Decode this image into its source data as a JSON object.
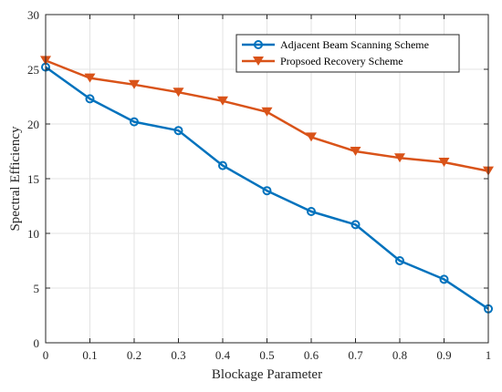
{
  "chart_data": {
    "type": "line",
    "xlabel": "Blockage Parameter",
    "ylabel": "Spectral Efficiency",
    "x": [
      0,
      0.1,
      0.2,
      0.3,
      0.4,
      0.5,
      0.6,
      0.7,
      0.8,
      0.9,
      1
    ],
    "xticks": [
      "0",
      "0.1",
      "0.2",
      "0.3",
      "0.4",
      "0.5",
      "0.6",
      "0.7",
      "0.8",
      "0.9",
      "1"
    ],
    "yticks": [
      "0",
      "5",
      "10",
      "15",
      "20",
      "25",
      "30"
    ],
    "xlim": [
      0,
      1
    ],
    "ylim": [
      0,
      30
    ],
    "grid": true,
    "legend_position": "top-right",
    "series": [
      {
        "name": "Adjacent Beam Scanning Scheme",
        "color": "#0072BD",
        "marker": "circle",
        "values": [
          25.2,
          22.3,
          20.2,
          19.4,
          16.2,
          13.9,
          12.0,
          10.8,
          7.5,
          5.8,
          3.1
        ]
      },
      {
        "name": "Propsoed Recovery Scheme",
        "color": "#D95319",
        "marker": "triangle-down",
        "values": [
          25.8,
          24.2,
          23.6,
          22.9,
          22.1,
          21.1,
          18.8,
          17.5,
          16.9,
          16.5,
          15.7
        ]
      }
    ]
  }
}
